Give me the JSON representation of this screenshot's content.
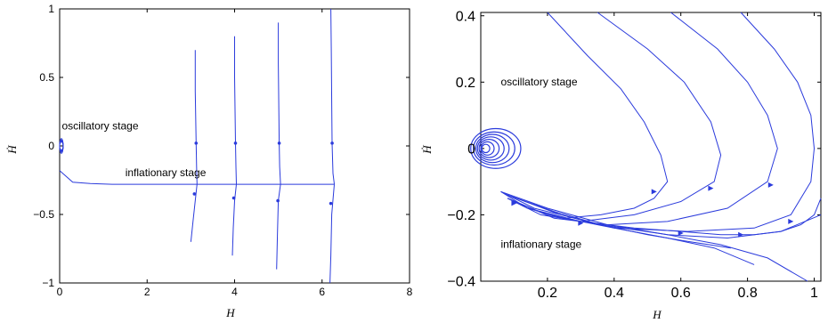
{
  "colors": {
    "curve": "#2b3bdc",
    "axis": "#000000",
    "background": "#ffffff"
  },
  "chart_data": [
    {
      "type": "line",
      "panel": "left",
      "xlabel": "H",
      "ylabel": "Ḣ",
      "xlim": [
        0,
        8
      ],
      "ylim": [
        -1,
        1
      ],
      "xticks": [
        0,
        2,
        4,
        6,
        8
      ],
      "yticks": [
        -1,
        -0.5,
        0,
        0.5,
        1
      ],
      "xtick_labels": [
        "0",
        "2",
        "4",
        "6",
        "8"
      ],
      "ytick_labels": [
        "−1",
        "−0.5",
        "0",
        "0.5",
        "1"
      ],
      "grid": false,
      "annotations": [
        {
          "text": "oscillatory stage",
          "x": 0.05,
          "y": 0.12
        },
        {
          "text": "inflationary stage",
          "x": 1.5,
          "y": -0.22
        }
      ],
      "series": [
        {
          "x": [
            0.0,
            0.3,
            0.7,
            1.2,
            2.0,
            3.0,
            4.0,
            5.0,
            6.0,
            6.28
          ],
          "y": [
            -0.18,
            -0.265,
            -0.275,
            -0.28,
            -0.28,
            -0.28,
            -0.28,
            -0.28,
            -0.28,
            -0.28
          ]
        },
        {
          "x": [
            3.1,
            3.1,
            3.12,
            3.13,
            3.14
          ],
          "y": [
            0.7,
            0.4,
            0.02,
            -0.15,
            -0.28
          ]
        },
        {
          "x": [
            4.0,
            4.0,
            4.02,
            4.03,
            4.04
          ],
          "y": [
            0.8,
            0.5,
            0.02,
            -0.15,
            -0.28
          ]
        },
        {
          "x": [
            5.0,
            5.0,
            5.02,
            5.03,
            5.05
          ],
          "y": [
            0.9,
            0.6,
            0.02,
            -0.15,
            -0.28
          ]
        },
        {
          "x": [
            6.2,
            6.21,
            6.22,
            6.23,
            6.25,
            6.28
          ],
          "y": [
            1.0,
            0.7,
            0.3,
            0.02,
            -0.2,
            -0.28
          ]
        },
        {
          "x": [
            3.14,
            3.1,
            3.05,
            3.0
          ],
          "y": [
            -0.28,
            -0.4,
            -0.55,
            -0.7
          ]
        },
        {
          "x": [
            4.04,
            4.0,
            3.97,
            3.95
          ],
          "y": [
            -0.28,
            -0.4,
            -0.6,
            -0.8
          ]
        },
        {
          "x": [
            5.05,
            5.0,
            4.98,
            4.96
          ],
          "y": [
            -0.28,
            -0.4,
            -0.65,
            -0.9
          ]
        },
        {
          "x": [
            6.28,
            6.22,
            6.2,
            6.18
          ],
          "y": [
            -0.28,
            -0.5,
            -0.8,
            -1.0
          ]
        }
      ],
      "markers": [
        {
          "x": 3.12,
          "y": 0.02
        },
        {
          "x": 4.02,
          "y": 0.02
        },
        {
          "x": 5.02,
          "y": 0.02
        },
        {
          "x": 6.23,
          "y": 0.02
        },
        {
          "x": 3.08,
          "y": -0.35
        },
        {
          "x": 3.98,
          "y": -0.38
        },
        {
          "x": 4.99,
          "y": -0.4
        },
        {
          "x": 6.2,
          "y": -0.42
        }
      ]
    },
    {
      "type": "line",
      "panel": "right",
      "xlabel": "H",
      "ylabel": "Ḣ",
      "xlim": [
        0,
        1.02
      ],
      "ylim": [
        -0.4,
        0.41
      ],
      "xticks": [
        0.2,
        0.4,
        0.6,
        0.8,
        1.0
      ],
      "yticks": [
        -0.4,
        -0.2,
        0,
        0.2,
        0.4
      ],
      "xtick_labels": [
        "0.2",
        "0.4",
        "0.6",
        "0.8",
        "1"
      ],
      "ytick_labels": [
        "−0.4",
        "−0.2",
        "0",
        "0.2",
        "0.4"
      ],
      "grid": false,
      "annotations": [
        {
          "text": "oscillatory stage",
          "x": 0.06,
          "y": 0.19
        },
        {
          "text": "inflationary stage",
          "x": 0.06,
          "y": -0.3
        }
      ],
      "series": [
        {
          "x": [
            0.2,
            0.32,
            0.42,
            0.49,
            0.54,
            0.56,
            0.52,
            0.46,
            0.36,
            0.25,
            0.14,
            0.08
          ],
          "y": [
            0.41,
            0.28,
            0.18,
            0.08,
            -0.02,
            -0.1,
            -0.15,
            -0.18,
            -0.2,
            -0.21,
            -0.18,
            -0.15
          ]
        },
        {
          "x": [
            0.35,
            0.5,
            0.61,
            0.69,
            0.72,
            0.7,
            0.6,
            0.46,
            0.3,
            0.18,
            0.08
          ],
          "y": [
            0.41,
            0.3,
            0.2,
            0.08,
            -0.02,
            -0.1,
            -0.16,
            -0.2,
            -0.22,
            -0.2,
            -0.15
          ]
        },
        {
          "x": [
            0.57,
            0.71,
            0.8,
            0.86,
            0.89,
            0.86,
            0.74,
            0.56,
            0.38,
            0.22,
            0.08
          ],
          "y": [
            0.41,
            0.3,
            0.2,
            0.1,
            0.0,
            -0.1,
            -0.18,
            -0.22,
            -0.23,
            -0.21,
            -0.15
          ]
        },
        {
          "x": [
            0.78,
            0.88,
            0.95,
            0.99,
            1.0,
            0.99,
            0.93,
            0.82,
            0.62,
            0.4,
            0.2,
            0.08
          ],
          "y": [
            0.41,
            0.3,
            0.2,
            0.1,
            0.0,
            -0.1,
            -0.2,
            -0.24,
            -0.25,
            -0.24,
            -0.2,
            -0.15
          ]
        },
        {
          "x": [
            1.02,
            1.0,
            0.96,
            0.9,
            0.82,
            0.72,
            0.6,
            0.46,
            0.3,
            0.14,
            0.06
          ],
          "y": [
            -0.15,
            -0.2,
            -0.23,
            -0.25,
            -0.26,
            -0.26,
            -0.25,
            -0.24,
            -0.22,
            -0.18,
            -0.13
          ]
        },
        {
          "x": [
            1.02,
            0.9,
            0.74,
            0.56,
            0.36,
            0.16,
            0.06
          ],
          "y": [
            -0.2,
            -0.25,
            -0.27,
            -0.26,
            -0.23,
            -0.18,
            -0.13
          ]
        },
        {
          "x": [
            0.98,
            0.86,
            0.72,
            0.56,
            0.38,
            0.2,
            0.06
          ],
          "y": [
            -0.4,
            -0.33,
            -0.29,
            -0.26,
            -0.23,
            -0.18,
            -0.13
          ]
        },
        {
          "x": [
            0.82,
            0.7,
            0.56,
            0.4,
            0.24,
            0.08
          ],
          "y": [
            -0.35,
            -0.3,
            -0.27,
            -0.24,
            -0.2,
            -0.14
          ]
        },
        {
          "x": [
            0.75,
            0.62,
            0.5,
            0.36,
            0.22,
            0.08
          ],
          "y": [
            -0.3,
            -0.28,
            -0.26,
            -0.23,
            -0.19,
            -0.14
          ]
        }
      ],
      "spirals": [
        {
          "cx": 0.045,
          "cy": 0.0,
          "r": 0.075,
          "h": 0.12
        },
        {
          "cx": 0.04,
          "cy": 0.0,
          "r": 0.062,
          "h": 0.1
        },
        {
          "cx": 0.035,
          "cy": 0.0,
          "r": 0.05,
          "h": 0.085
        },
        {
          "cx": 0.03,
          "cy": 0.0,
          "r": 0.04,
          "h": 0.07
        },
        {
          "cx": 0.025,
          "cy": 0.0,
          "r": 0.03,
          "h": 0.055
        },
        {
          "cx": 0.02,
          "cy": 0.0,
          "r": 0.02,
          "h": 0.04
        },
        {
          "cx": 0.015,
          "cy": 0.0,
          "r": 0.012,
          "h": 0.025
        }
      ],
      "arrows": [
        {
          "x": 0.52,
          "y": -0.13
        },
        {
          "x": 0.69,
          "y": -0.12
        },
        {
          "x": 0.87,
          "y": -0.11
        },
        {
          "x": 0.93,
          "y": -0.22
        },
        {
          "x": 0.78,
          "y": -0.26
        },
        {
          "x": 0.6,
          "y": -0.255
        },
        {
          "x": 0.3,
          "y": -0.225
        },
        {
          "x": 0.1,
          "y": -0.165
        }
      ]
    }
  ]
}
